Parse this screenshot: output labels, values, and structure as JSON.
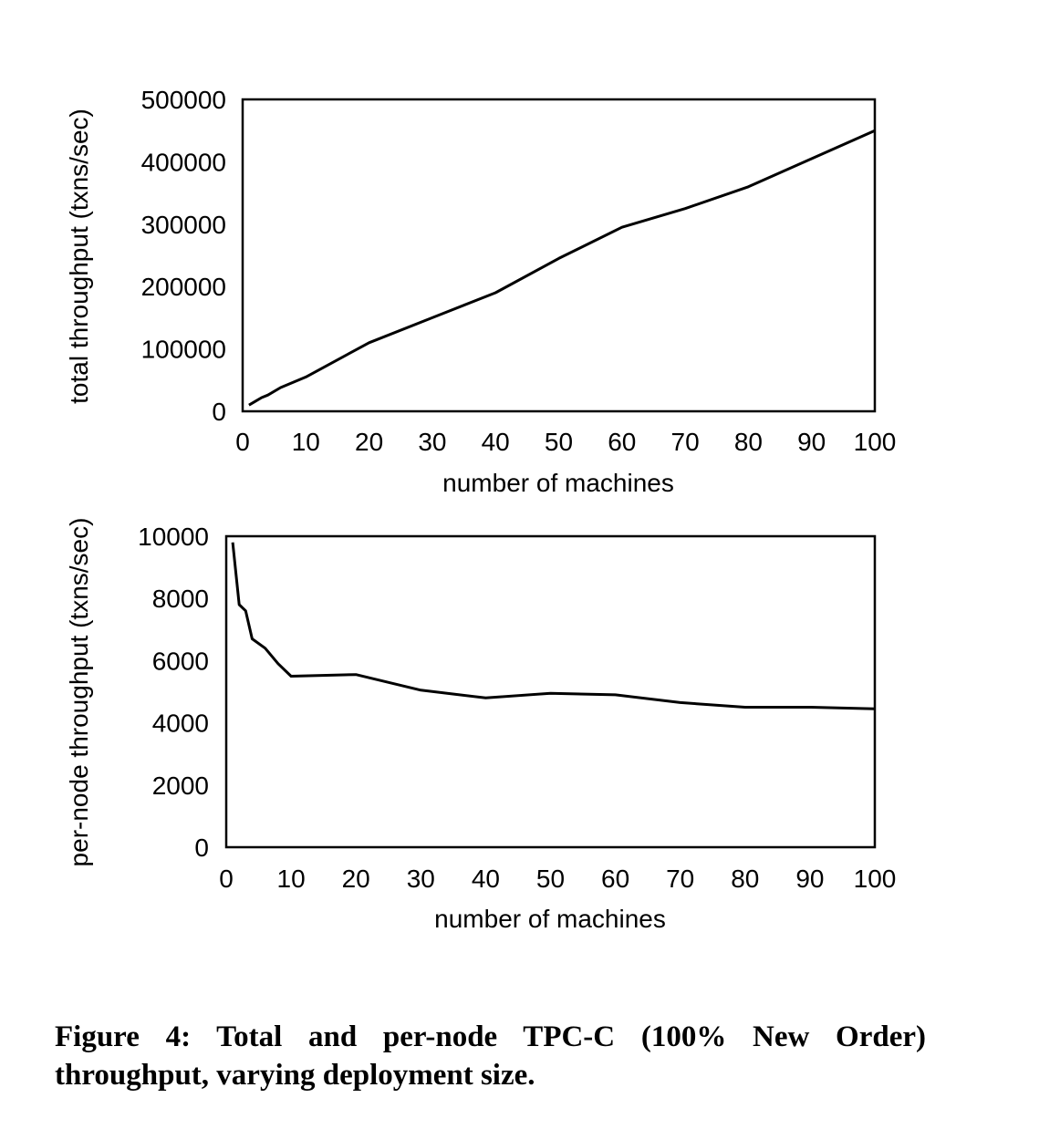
{
  "chart_data": [
    {
      "type": "line",
      "xlabel": "number of machines",
      "ylabel": "total throughput (txns/sec)",
      "xlim": [
        0,
        100
      ],
      "ylim": [
        0,
        500000
      ],
      "x_ticks": [
        0,
        10,
        20,
        30,
        40,
        50,
        60,
        70,
        80,
        90,
        100
      ],
      "y_ticks": [
        0,
        100000,
        200000,
        300000,
        400000,
        500000
      ],
      "series": [
        {
          "x": [
            1,
            2,
            3,
            4,
            6,
            10,
            20,
            30,
            40,
            50,
            60,
            70,
            80,
            90,
            100
          ],
          "values": [
            10000,
            16000,
            22000,
            26000,
            38000,
            55000,
            110000,
            150000,
            190000,
            245000,
            295000,
            325000,
            360000,
            405000,
            450000
          ]
        }
      ]
    },
    {
      "type": "line",
      "xlabel": "number of machines",
      "ylabel": "per-node throughput (txns/sec)",
      "xlim": [
        0,
        100
      ],
      "ylim": [
        0,
        10000
      ],
      "x_ticks": [
        0,
        10,
        20,
        30,
        40,
        50,
        60,
        70,
        80,
        90,
        100
      ],
      "y_ticks": [
        0,
        2000,
        4000,
        6000,
        8000,
        10000
      ],
      "series": [
        {
          "x": [
            1,
            2,
            3,
            4,
            6,
            8,
            10,
            20,
            30,
            40,
            50,
            60,
            70,
            80,
            90,
            100
          ],
          "values": [
            9800,
            7800,
            7600,
            6700,
            6400,
            5900,
            5500,
            5550,
            5050,
            4800,
            4950,
            4900,
            4650,
            4500,
            4500,
            4450
          ]
        }
      ]
    }
  ],
  "caption": "Figure 4:  Total and per-node TPC-C (100% New Order) throughput, varying deployment size."
}
